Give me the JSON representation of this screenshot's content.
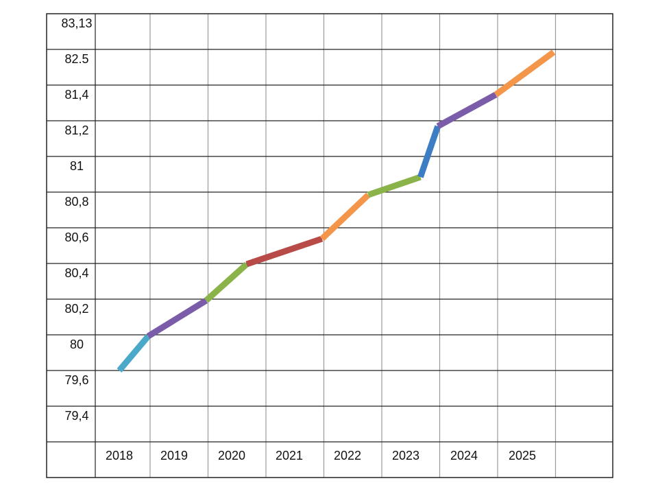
{
  "chart_data": {
    "type": "line",
    "title": "",
    "xlabel": "",
    "ylabel": "",
    "grid": true,
    "categories": [
      "2018",
      "2019",
      "2020",
      "2021",
      "2022",
      "2023",
      "2024",
      "2025"
    ],
    "y_tick_labels": [
      "83,13",
      "82.5",
      "81,4",
      "81,2",
      "81",
      "80,8",
      "80,6",
      "80,4",
      "80,2",
      "80",
      "79,6",
      "79,4"
    ],
    "series": [
      {
        "x": [
          2018.0,
          2018.5,
          2019.5,
          2020.2,
          2021.5,
          2022.3,
          2023.2,
          2023.5,
          2024.5,
          2025.5
        ],
        "y": [
          79.6,
          80.0,
          80.2,
          80.4,
          80.55,
          80.8,
          80.9,
          81.2,
          81.4,
          82.5
        ]
      }
    ],
    "segment_colors": [
      "#4aa8c9",
      "#7a5ca8",
      "#8ab34a",
      "#b84b47",
      "#f4964a",
      "#8ab34a",
      "#3d7dc4",
      "#7a5ca8",
      "#f4964a"
    ]
  }
}
